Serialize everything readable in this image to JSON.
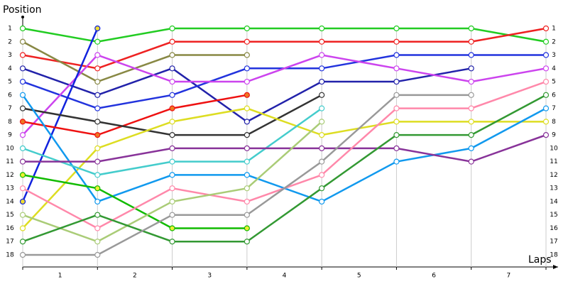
{
  "chart_data": {
    "type": "line",
    "y_label": "Position",
    "x_label": "Laps",
    "x": [
      0,
      1,
      2,
      3,
      4,
      5,
      6,
      7
    ],
    "xlim": [
      0,
      7
    ],
    "categories": [
      "1",
      "2",
      "3",
      "4",
      "5",
      "6",
      "7"
    ],
    "ylim": [
      1,
      18
    ],
    "y_inverted": true,
    "yticks": [
      1,
      2,
      3,
      4,
      5,
      6,
      7,
      8,
      9,
      10,
      11,
      12,
      13,
      14,
      15,
      16,
      17,
      18
    ],
    "grid": true,
    "series": [
      {
        "color": "#22cc22",
        "values": [
          1,
          2,
          1,
          1,
          1,
          1,
          1,
          2
        ]
      },
      {
        "color": "#ee2222",
        "values": [
          3,
          4,
          2,
          2,
          2,
          2,
          2,
          1
        ]
      },
      {
        "color": "#888844",
        "values": [
          2,
          5,
          3,
          3,
          null,
          null,
          null,
          null
        ]
      },
      {
        "color": "#2222aa",
        "values": [
          4,
          6,
          4,
          8,
          5,
          5,
          4,
          null
        ]
      },
      {
        "color": "#2233dd",
        "values": [
          5,
          7,
          6,
          4,
          4,
          3,
          3,
          3
        ]
      },
      {
        "color": "#cc44ee",
        "values": [
          9,
          3,
          5,
          5,
          3,
          4,
          5,
          4
        ]
      },
      {
        "color": "#1122dd",
        "marker_fill": "#eedd33",
        "values": [
          14,
          1,
          null,
          null,
          null,
          null,
          null,
          null
        ]
      },
      {
        "color": "#ee1111",
        "marker_fill": "#ee7722",
        "values": [
          8,
          9,
          7,
          6,
          null,
          null,
          null,
          null
        ]
      },
      {
        "color": "#333333",
        "values": [
          7,
          8,
          9,
          9,
          6,
          null,
          null,
          null
        ]
      },
      {
        "color": "#dddd22",
        "values": [
          16,
          10,
          8,
          7,
          9,
          8,
          8,
          8
        ]
      },
      {
        "color": "#1199ee",
        "values": [
          6,
          14,
          12,
          12,
          14,
          11,
          10,
          7
        ]
      },
      {
        "color": "#44cccc",
        "values": [
          10,
          12,
          11,
          11,
          7,
          null,
          null,
          null
        ]
      },
      {
        "color": "#883399",
        "values": [
          11,
          11,
          10,
          10,
          10,
          10,
          11,
          9
        ]
      },
      {
        "color": "#11bb00",
        "marker_fill": "#eeee33",
        "values": [
          12,
          13,
          16,
          16,
          null,
          null,
          null,
          null
        ]
      },
      {
        "color": "#ff88aa",
        "values": [
          13,
          16,
          13,
          14,
          12,
          7,
          7,
          5
        ]
      },
      {
        "color": "#aacc77",
        "values": [
          15,
          17,
          14,
          13,
          8,
          null,
          null,
          null
        ]
      },
      {
        "color": "#339933",
        "values": [
          17,
          15,
          17,
          17,
          13,
          9,
          9,
          6
        ]
      },
      {
        "color": "#999999",
        "values": [
          18,
          18,
          15,
          15,
          11,
          6,
          6,
          null
        ]
      }
    ]
  }
}
